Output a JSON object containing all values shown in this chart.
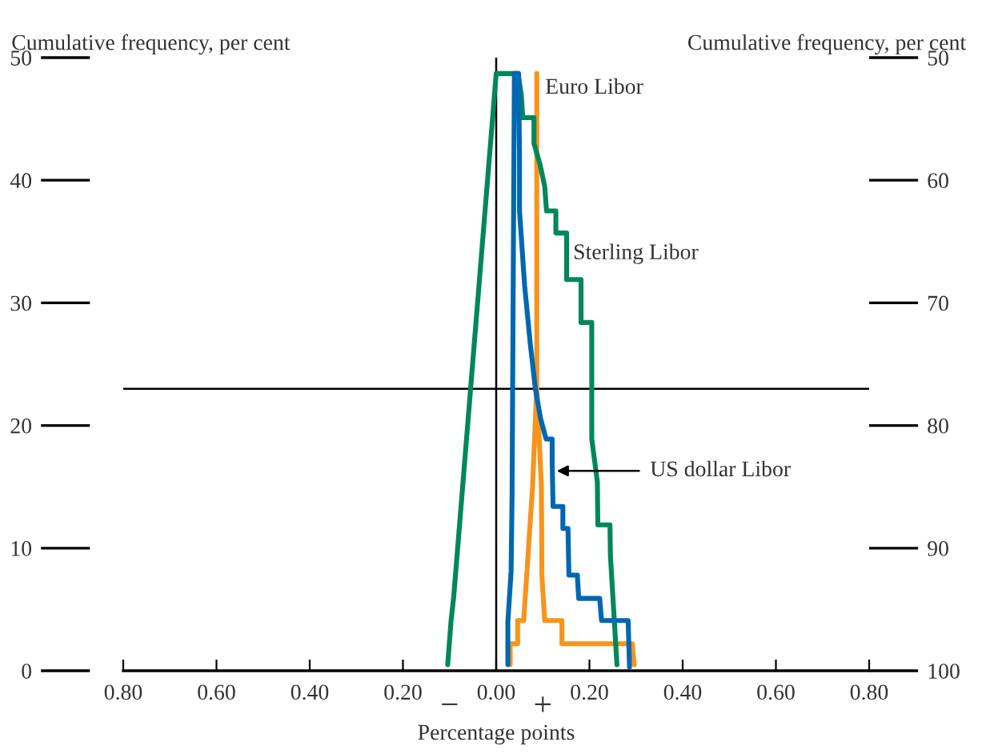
{
  "chart_data": {
    "type": "line",
    "xlabel": "Percentage points",
    "ylabel": "Cumulative frequency, per cent",
    "y2label": "Cumulative frequency, per cent",
    "xlim": [
      -0.8,
      0.8
    ],
    "xticks": [
      {
        "value": -0.8,
        "label": "0.80"
      },
      {
        "value": -0.6,
        "label": "0.60"
      },
      {
        "value": -0.4,
        "label": "0.40"
      },
      {
        "value": -0.2,
        "label": "0.20"
      },
      {
        "value": 0.0,
        "label": "0.00"
      },
      {
        "value": 0.2,
        "label": "0.20"
      },
      {
        "value": 0.4,
        "label": "0.40"
      },
      {
        "value": 0.6,
        "label": "0.60"
      },
      {
        "value": 0.8,
        "label": "0.80"
      }
    ],
    "ylim": [
      0,
      50
    ],
    "yticks": [
      0,
      10,
      20,
      30,
      40,
      50
    ],
    "y2lim": [
      100,
      50
    ],
    "y2ticks": [
      50,
      60,
      70,
      80,
      90,
      100
    ],
    "grid": false,
    "marker": "none",
    "line_style": "solid",
    "ref_lines": [
      {
        "axis": "y",
        "value": 23,
        "color": "#000000"
      },
      {
        "axis": "x",
        "value": 0,
        "color": "#000000"
      }
    ],
    "annotations": [
      "−",
      "+"
    ],
    "series": [
      {
        "name": "Euro Libor",
        "color": "#f7941d",
        "x": [
          0.03,
          0.03,
          0.046,
          0.046,
          0.059,
          0.066,
          0.078,
          0.087,
          0.087,
          0.087,
          0.097,
          0.098,
          0.104,
          0.141,
          0.141,
          0.292,
          0.296
        ],
        "values": [
          0.5,
          2.2,
          2.2,
          4.1,
          4.1,
          8.1,
          15.0,
          23.2,
          48.7,
          23.2,
          15.0,
          7.8,
          4.1,
          4.1,
          2.2,
          2.2,
          0.5
        ]
      },
      {
        "name": "Sterling Libor",
        "color": "#00875a",
        "x": [
          -0.104,
          -0.097,
          -0.091,
          0.0,
          0.047,
          0.054,
          0.057,
          0.081,
          0.081,
          0.094,
          0.104,
          0.108,
          0.128,
          0.128,
          0.151,
          0.151,
          0.182,
          0.182,
          0.205,
          0.205,
          0.217,
          0.218,
          0.244,
          0.245,
          0.259
        ],
        "values": [
          0.5,
          4.0,
          6.1,
          48.7,
          48.7,
          46.9,
          45.1,
          45.1,
          43.0,
          41.3,
          39.5,
          37.5,
          37.5,
          35.7,
          35.7,
          31.9,
          31.9,
          28.4,
          28.4,
          18.9,
          15.4,
          11.9,
          11.9,
          9.4,
          0.5
        ]
      },
      {
        "name": "US dollar Libor",
        "color": "#0067b1",
        "x": [
          0.025,
          0.025,
          0.032,
          0.034,
          0.039,
          0.048,
          0.05,
          0.05,
          0.061,
          0.073,
          0.084,
          0.095,
          0.107,
          0.12,
          0.12,
          0.122,
          0.143,
          0.143,
          0.154,
          0.156,
          0.174,
          0.177,
          0.222,
          0.226,
          0.283,
          0.286
        ],
        "values": [
          0.5,
          4.0,
          8.1,
          14.2,
          48.7,
          48.7,
          42.2,
          37.5,
          31.4,
          26.7,
          23.0,
          20.6,
          18.9,
          18.9,
          17.2,
          13.4,
          13.4,
          11.6,
          11.6,
          7.8,
          7.8,
          5.9,
          5.9,
          4.1,
          4.1,
          0.3
        ]
      }
    ]
  }
}
